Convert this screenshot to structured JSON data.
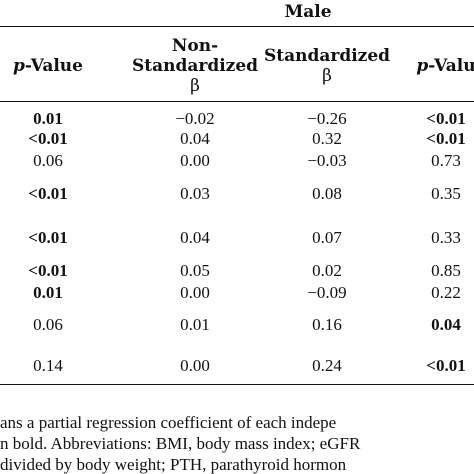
{
  "table": {
    "group_header": "Male",
    "columns": [
      {
        "id": "pvalue_left",
        "label_prefix": "p",
        "label_suffix": "-Value"
      },
      {
        "id": "non_std",
        "label_lines": [
          "Non-",
          "Standardized",
          "β"
        ]
      },
      {
        "id": "std",
        "label_lines": [
          "Standardized",
          "β"
        ]
      },
      {
        "id": "pvalue_right",
        "label_prefix": "p",
        "label_suffix": "-Valu"
      }
    ],
    "rows": [
      {
        "p_left": "0.01",
        "p_left_bold": true,
        "non_std": "−0.02",
        "std": "−0.26",
        "p_right": "<0.01",
        "p_right_bold": true
      },
      {
        "p_left": "<0.01",
        "p_left_bold": true,
        "non_std": "0.04",
        "std": "0.32",
        "p_right": "<0.01",
        "p_right_bold": true
      },
      {
        "p_left": "0.06",
        "p_left_bold": false,
        "non_std": "0.00",
        "std": "−0.03",
        "p_right": "0.73",
        "p_right_bold": false
      },
      {
        "p_left": "<0.01",
        "p_left_bold": true,
        "non_std": "0.03",
        "std": "0.08",
        "p_right": "0.35",
        "p_right_bold": false
      },
      {
        "p_left": "<0.01",
        "p_left_bold": true,
        "non_std": "0.04",
        "std": "0.07",
        "p_right": "0.33",
        "p_right_bold": false
      },
      {
        "p_left": "<0.01",
        "p_left_bold": true,
        "non_std": "0.05",
        "std": "0.02",
        "p_right": "0.85",
        "p_right_bold": false
      },
      {
        "p_left": "0.01",
        "p_left_bold": true,
        "non_std": "0.00",
        "std": "−0.09",
        "p_right": "0.22",
        "p_right_bold": false
      },
      {
        "p_left": "0.06",
        "p_left_bold": false,
        "non_std": "0.01",
        "std": "0.16",
        "p_right": "0.04",
        "p_right_bold": true
      },
      {
        "p_left": "0.14",
        "p_left_bold": false,
        "non_std": "0.00",
        "std": "0.24",
        "p_right": "<0.01",
        "p_right_bold": true
      }
    ]
  },
  "footnote": {
    "lines": [
      "ans a partial regression coefficient of each indepe",
      "n bold. Abbreviations: BMI, body mass index; eGFR",
      "divided by body weight; PTH, parathyroid hormon"
    ]
  }
}
